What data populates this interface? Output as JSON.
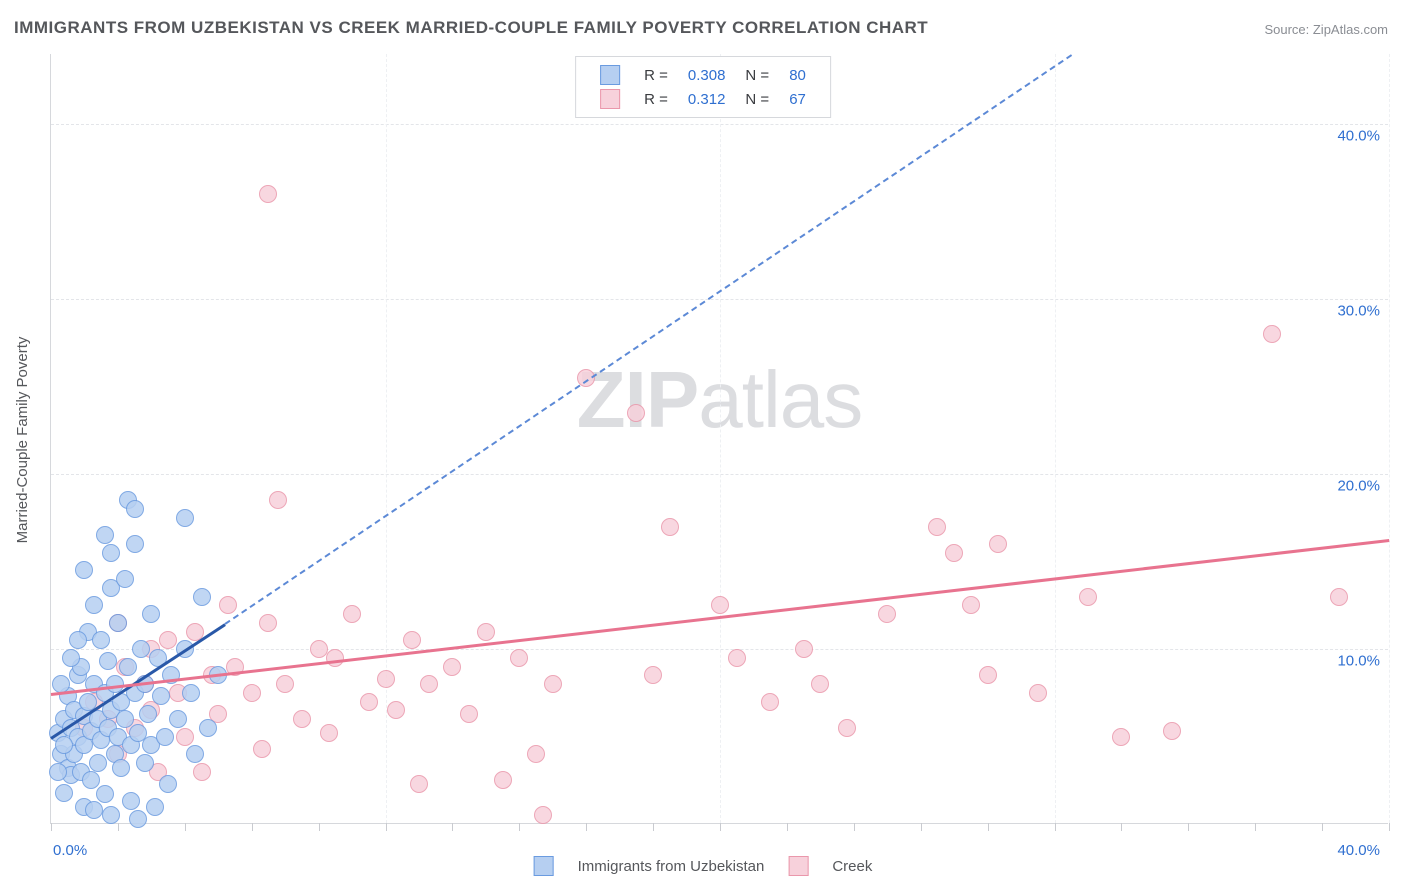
{
  "title": "IMMIGRANTS FROM UZBEKISTAN VS CREEK MARRIED-COUPLE FAMILY POVERTY CORRELATION CHART",
  "source_label": "Source: ZipAtlas.com",
  "y_axis_title": "Married-Couple Family Poverty",
  "watermark_bold": "ZIP",
  "watermark_light": "atlas",
  "chart": {
    "type": "scatter",
    "xlim": [
      0,
      40
    ],
    "ylim": [
      0,
      44
    ],
    "x_ticks": [
      0,
      10,
      20,
      30,
      40
    ],
    "x_tick_labels_shown": {
      "0": "0.0%",
      "40": "40.0%"
    },
    "y_ticks": [
      10,
      20,
      30,
      40
    ],
    "y_tick_labels": {
      "10": "10.0%",
      "20": "20.0%",
      "30": "30.0%",
      "40": "40.0%"
    },
    "minor_x_ticks": [
      2,
      4,
      6,
      8,
      12,
      14,
      16,
      18,
      22,
      24,
      26,
      28,
      32,
      34,
      36,
      38
    ],
    "grid_color": "#e3e5e9",
    "background_color": "#ffffff",
    "marker_radius": 9,
    "series": [
      {
        "name": "Immigrants from Uzbekistan",
        "fill": "#b6cff1",
        "stroke": "#6a9be0",
        "R": "0.308",
        "N": "80",
        "points": [
          [
            0.2,
            5.2
          ],
          [
            0.3,
            4.0
          ],
          [
            0.4,
            6.0
          ],
          [
            0.5,
            3.2
          ],
          [
            0.5,
            7.3
          ],
          [
            0.6,
            5.5
          ],
          [
            0.6,
            2.8
          ],
          [
            0.7,
            6.5
          ],
          [
            0.7,
            4.0
          ],
          [
            0.8,
            8.5
          ],
          [
            0.8,
            5.0
          ],
          [
            0.9,
            3.0
          ],
          [
            0.9,
            9.0
          ],
          [
            1.0,
            6.2
          ],
          [
            1.0,
            4.5
          ],
          [
            1.1,
            11.0
          ],
          [
            1.1,
            7.0
          ],
          [
            1.2,
            5.3
          ],
          [
            1.2,
            2.5
          ],
          [
            1.3,
            8.0
          ],
          [
            1.3,
            12.5
          ],
          [
            1.4,
            6.0
          ],
          [
            1.4,
            3.5
          ],
          [
            1.5,
            10.5
          ],
          [
            1.5,
            4.8
          ],
          [
            1.6,
            7.5
          ],
          [
            1.6,
            1.7
          ],
          [
            1.7,
            5.5
          ],
          [
            1.7,
            9.3
          ],
          [
            1.8,
            6.5
          ],
          [
            1.8,
            13.5
          ],
          [
            1.9,
            4.0
          ],
          [
            1.9,
            8.0
          ],
          [
            2.0,
            5.0
          ],
          [
            2.0,
            11.5
          ],
          [
            2.1,
            3.2
          ],
          [
            2.1,
            7.0
          ],
          [
            2.2,
            14.0
          ],
          [
            2.2,
            6.0
          ],
          [
            2.3,
            9.0
          ],
          [
            2.4,
            4.5
          ],
          [
            2.4,
            1.3
          ],
          [
            2.5,
            7.5
          ],
          [
            2.5,
            16.0
          ],
          [
            2.6,
            5.2
          ],
          [
            2.7,
            10.0
          ],
          [
            2.8,
            3.5
          ],
          [
            2.8,
            8.0
          ],
          [
            2.9,
            6.3
          ],
          [
            3.0,
            12.0
          ],
          [
            3.0,
            4.5
          ],
          [
            3.1,
            1.0
          ],
          [
            3.2,
            9.5
          ],
          [
            3.3,
            7.3
          ],
          [
            3.4,
            5.0
          ],
          [
            3.5,
            2.3
          ],
          [
            3.6,
            8.5
          ],
          [
            3.8,
            6.0
          ],
          [
            4.0,
            17.5
          ],
          [
            4.0,
            10.0
          ],
          [
            4.2,
            7.5
          ],
          [
            4.3,
            4.0
          ],
          [
            4.5,
            13.0
          ],
          [
            4.7,
            5.5
          ],
          [
            5.0,
            8.5
          ],
          [
            1.0,
            1.0
          ],
          [
            1.3,
            0.8
          ],
          [
            1.8,
            0.5
          ],
          [
            2.6,
            0.3
          ],
          [
            0.4,
            1.8
          ],
          [
            0.6,
            9.5
          ],
          [
            0.8,
            10.5
          ],
          [
            1.0,
            14.5
          ],
          [
            2.3,
            18.5
          ],
          [
            2.5,
            18.0
          ],
          [
            1.8,
            15.5
          ],
          [
            1.6,
            16.5
          ],
          [
            0.3,
            8.0
          ],
          [
            0.2,
            3.0
          ],
          [
            0.4,
            4.5
          ]
        ],
        "trend_solid": {
          "x0": 0,
          "y0": 5.0,
          "x1": 5.2,
          "y1": 11.5
        },
        "trend_dashed": {
          "x0": 5.2,
          "y0": 11.5,
          "x1": 30.5,
          "y1": 44
        }
      },
      {
        "name": "Creek",
        "fill": "#f7d1db",
        "stroke": "#ea97ab",
        "R": "0.312",
        "N": "67",
        "points": [
          [
            1.0,
            5.5
          ],
          [
            1.3,
            7.0
          ],
          [
            1.7,
            6.0
          ],
          [
            2.0,
            4.0
          ],
          [
            2.2,
            9.0
          ],
          [
            2.5,
            5.5
          ],
          [
            2.8,
            8.0
          ],
          [
            3.0,
            6.5
          ],
          [
            3.2,
            3.0
          ],
          [
            3.5,
            10.5
          ],
          [
            3.8,
            7.5
          ],
          [
            4.0,
            5.0
          ],
          [
            4.3,
            11.0
          ],
          [
            4.8,
            8.5
          ],
          [
            5.0,
            6.3
          ],
          [
            5.3,
            12.5
          ],
          [
            5.5,
            9.0
          ],
          [
            6.0,
            7.5
          ],
          [
            6.3,
            4.3
          ],
          [
            6.5,
            11.5
          ],
          [
            6.8,
            18.5
          ],
          [
            6.5,
            36.0
          ],
          [
            7.0,
            8.0
          ],
          [
            7.5,
            6.0
          ],
          [
            8.0,
            10.0
          ],
          [
            8.3,
            5.2
          ],
          [
            8.5,
            9.5
          ],
          [
            9.0,
            12.0
          ],
          [
            9.5,
            7.0
          ],
          [
            10.0,
            8.3
          ],
          [
            10.3,
            6.5
          ],
          [
            10.8,
            10.5
          ],
          [
            11.0,
            2.3
          ],
          [
            11.3,
            8.0
          ],
          [
            12.0,
            9.0
          ],
          [
            12.5,
            6.3
          ],
          [
            13.0,
            11.0
          ],
          [
            13.5,
            2.5
          ],
          [
            14.0,
            9.5
          ],
          [
            14.5,
            4.0
          ],
          [
            14.7,
            0.5
          ],
          [
            15.0,
            8.0
          ],
          [
            16.0,
            25.5
          ],
          [
            17.5,
            23.5
          ],
          [
            18.0,
            8.5
          ],
          [
            18.5,
            17.0
          ],
          [
            20.0,
            12.5
          ],
          [
            20.5,
            9.5
          ],
          [
            21.5,
            7.0
          ],
          [
            22.5,
            10.0
          ],
          [
            23.0,
            8.0
          ],
          [
            23.8,
            5.5
          ],
          [
            25.0,
            12.0
          ],
          [
            26.5,
            17.0
          ],
          [
            27.0,
            15.5
          ],
          [
            27.5,
            12.5
          ],
          [
            28.0,
            8.5
          ],
          [
            28.3,
            16.0
          ],
          [
            29.5,
            7.5
          ],
          [
            31.0,
            13.0
          ],
          [
            32.0,
            5.0
          ],
          [
            33.5,
            5.3
          ],
          [
            36.5,
            28.0
          ],
          [
            38.5,
            13.0
          ],
          [
            3.0,
            10.0
          ],
          [
            4.5,
            3.0
          ],
          [
            2.0,
            11.5
          ]
        ],
        "trend_solid": {
          "x0": 0,
          "y0": 7.5,
          "x1": 40,
          "y1": 16.3
        }
      }
    ]
  },
  "legend_top": {
    "rows": [
      {
        "swatch_fill": "#b6cff1",
        "swatch_stroke": "#6a9be0",
        "R_label": "R =",
        "R_val": "0.308",
        "N_label": "N =",
        "N_val": "80"
      },
      {
        "swatch_fill": "#f7d1db",
        "swatch_stroke": "#ea97ab",
        "R_label": "R =",
        "R_val": "0.312",
        "N_label": "N =",
        "N_val": "67"
      }
    ]
  },
  "legend_bottom": [
    {
      "swatch_fill": "#b6cff1",
      "swatch_stroke": "#6a9be0",
      "label": "Immigrants from Uzbekistan"
    },
    {
      "swatch_fill": "#f7d1db",
      "swatch_stroke": "#ea97ab",
      "label": "Creek"
    }
  ]
}
